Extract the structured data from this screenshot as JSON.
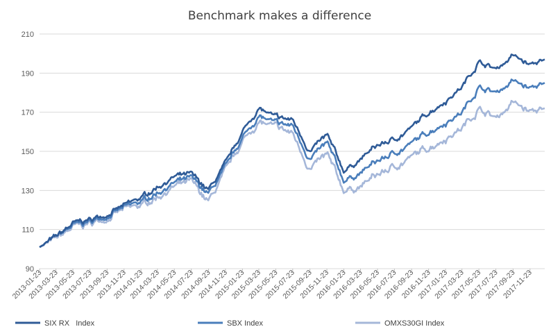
{
  "chart_data": {
    "type": "line",
    "title": "Benchmark makes a difference",
    "xlabel": "",
    "ylabel": "",
    "ylim": [
      90,
      210
    ],
    "yticks": [
      90,
      110,
      130,
      150,
      170,
      190,
      210
    ],
    "grid": "horizontal",
    "legend_position": "bottom",
    "x_tick_labels": [
      "2013-01-23",
      "2013-03-23",
      "2013-05-23",
      "2013-07-23",
      "2013-09-23",
      "2013-11-23",
      "2014-01-23",
      "2014-03-23",
      "2014-05-23",
      "2014-07-23",
      "2014-09-23",
      "2014-11-23",
      "2015-01-23",
      "2015-03-23",
      "2015-05-23",
      "2015-07-23",
      "2015-09-23",
      "2015-11-23",
      "2016-01-23",
      "2016-03-23",
      "2016-05-23",
      "2016-07-23",
      "2016-09-23",
      "2016-11-23",
      "2017-01-23",
      "2017-03-23",
      "2017-05-23",
      "2017-07-23",
      "2017-09-23",
      "2017-11-23"
    ],
    "x": [
      "2013-01-23",
      "2013-03-23",
      "2013-05-23",
      "2013-07-23",
      "2013-09-23",
      "2013-11-23",
      "2014-01-23",
      "2014-03-23",
      "2014-05-23",
      "2014-07-23",
      "2014-09-23",
      "2014-11-23",
      "2015-01-23",
      "2015-03-23",
      "2015-05-23",
      "2015-07-23",
      "2015-09-23",
      "2015-11-23",
      "2016-01-23",
      "2016-03-23",
      "2016-05-23",
      "2016-07-23",
      "2016-09-23",
      "2016-11-23",
      "2017-01-23",
      "2017-03-23",
      "2017-05-23",
      "2017-07-23",
      "2017-09-23",
      "2017-11-23",
      "2018-01-15"
    ],
    "series": [
      {
        "name": "SIX RX   Index",
        "color": "#2f5b97",
        "values": [
          101,
          106,
          113,
          115,
          118,
          122,
          126,
          132,
          137,
          138,
          130,
          143,
          160,
          172,
          167,
          166,
          150,
          158,
          140,
          146,
          153,
          156,
          162,
          170,
          176,
          183,
          196,
          192,
          199,
          194,
          197
        ]
      },
      {
        "name": "SBX Index",
        "color": "#4a7ebb",
        "values": [
          101,
          106,
          112,
          114,
          117,
          121,
          124,
          129,
          134,
          136,
          128,
          141,
          157,
          168,
          164,
          163,
          146,
          154,
          135,
          139,
          145,
          149,
          154,
          160,
          165,
          170,
          183,
          180,
          186,
          182,
          185
        ]
      },
      {
        "name": "OMXS30GI Index",
        "color": "#a5b7d9",
        "values": [
          101,
          105,
          111,
          113,
          116,
          120,
          122,
          127,
          132,
          134,
          124,
          139,
          155,
          165,
          162,
          159,
          141,
          148,
          130,
          132,
          138,
          142,
          147,
          152,
          157,
          162,
          172,
          167,
          175,
          170,
          172
        ]
      }
    ]
  }
}
